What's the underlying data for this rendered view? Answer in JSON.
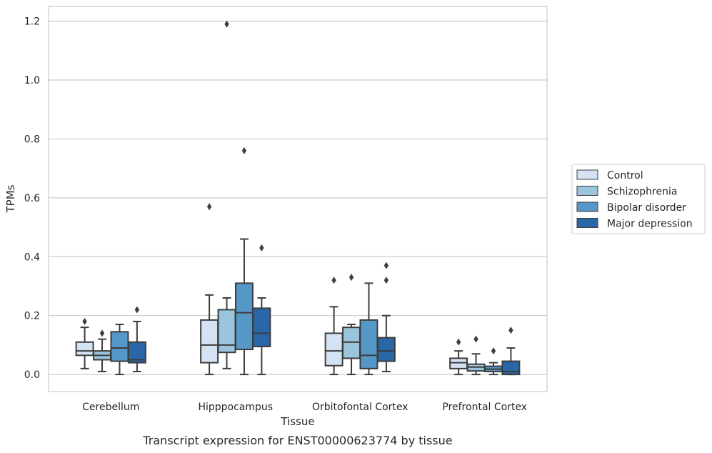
{
  "chart_data": {
    "type": "box",
    "caption": "Transcript expression for ENST00000623774 by tissue",
    "xlabel": "Tissue",
    "ylabel": "TPMs",
    "ylim": [
      -0.058,
      1.25
    ],
    "yticks": [
      0.0,
      0.2,
      0.4,
      0.6,
      0.8,
      1.0,
      1.2
    ],
    "ytick_labels": [
      "0.0",
      "0.2",
      "0.4",
      "0.6",
      "0.8",
      "1.0",
      "1.2"
    ],
    "grid": "horizontal",
    "legend_position": "right",
    "categories": [
      "Cerebellum",
      "Hipppocampus",
      "Orbitofontal Cortex",
      "Prefrontal Cortex"
    ],
    "series": [
      {
        "name": "Control",
        "color": "#d3e3f3",
        "boxes": [
          {
            "whisker_low": 0.02,
            "q1": 0.065,
            "median": 0.08,
            "q3": 0.11,
            "whisker_high": 0.16,
            "outliers": [
              0.18
            ]
          },
          {
            "whisker_low": 0.0,
            "q1": 0.04,
            "median": 0.1,
            "q3": 0.185,
            "whisker_high": 0.27,
            "outliers": [
              0.57
            ]
          },
          {
            "whisker_low": 0.0,
            "q1": 0.03,
            "median": 0.08,
            "q3": 0.14,
            "whisker_high": 0.23,
            "outliers": [
              0.32
            ]
          },
          {
            "whisker_low": 0.0,
            "q1": 0.02,
            "median": 0.04,
            "q3": 0.055,
            "whisker_high": 0.08,
            "outliers": [
              0.11
            ]
          }
        ]
      },
      {
        "name": "Schizophrenia",
        "color": "#9ac5dd",
        "boxes": [
          {
            "whisker_low": 0.01,
            "q1": 0.05,
            "median": 0.065,
            "q3": 0.08,
            "whisker_high": 0.12,
            "outliers": [
              0.14
            ]
          },
          {
            "whisker_low": 0.02,
            "q1": 0.075,
            "median": 0.1,
            "q3": 0.22,
            "whisker_high": 0.26,
            "outliers": [
              1.19
            ]
          },
          {
            "whisker_low": 0.0,
            "q1": 0.055,
            "median": 0.11,
            "q3": 0.16,
            "whisker_high": 0.17,
            "outliers": [
              0.33
            ]
          },
          {
            "whisker_low": 0.0,
            "q1": 0.012,
            "median": 0.025,
            "q3": 0.035,
            "whisker_high": 0.07,
            "outliers": [
              0.12
            ]
          }
        ]
      },
      {
        "name": "Bipolar disorder",
        "color": "#5597c6",
        "boxes": [
          {
            "whisker_low": 0.0,
            "q1": 0.045,
            "median": 0.09,
            "q3": 0.145,
            "whisker_high": 0.17,
            "outliers": []
          },
          {
            "whisker_low": 0.0,
            "q1": 0.085,
            "median": 0.21,
            "q3": 0.31,
            "whisker_high": 0.46,
            "outliers": [
              0.76
            ]
          },
          {
            "whisker_low": 0.0,
            "q1": 0.02,
            "median": 0.065,
            "q3": 0.185,
            "whisker_high": 0.31,
            "outliers": []
          },
          {
            "whisker_low": 0.0,
            "q1": 0.01,
            "median": 0.018,
            "q3": 0.028,
            "whisker_high": 0.04,
            "outliers": [
              0.08
            ]
          }
        ]
      },
      {
        "name": "Major depression",
        "color": "#2a67a7",
        "boxes": [
          {
            "whisker_low": 0.01,
            "q1": 0.04,
            "median": 0.05,
            "q3": 0.11,
            "whisker_high": 0.18,
            "outliers": [
              0.22
            ]
          },
          {
            "whisker_low": 0.0,
            "q1": 0.095,
            "median": 0.14,
            "q3": 0.225,
            "whisker_high": 0.26,
            "outliers": [
              0.43
            ]
          },
          {
            "whisker_low": 0.01,
            "q1": 0.045,
            "median": 0.08,
            "q3": 0.125,
            "whisker_high": 0.2,
            "outliers": [
              0.32,
              0.37
            ]
          },
          {
            "whisker_low": 0.0,
            "q1": 0.0,
            "median": 0.01,
            "q3": 0.045,
            "whisker_high": 0.09,
            "outliers": [
              0.15
            ]
          }
        ]
      }
    ]
  }
}
